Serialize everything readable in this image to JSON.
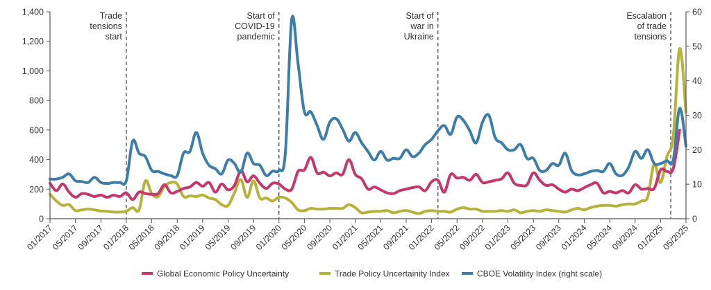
{
  "chart_data": {
    "type": "line",
    "title": "",
    "start_month": "01/2017",
    "months_count": 101,
    "x_tick_labels": [
      "01/2017",
      "05/2017",
      "09/2017",
      "01/2018",
      "05/2018",
      "09/2018",
      "01/2019",
      "05/2019",
      "09/2019",
      "01/2020",
      "05/2020",
      "09/2020",
      "01/2021",
      "05/2021",
      "09/2021",
      "01/2022",
      "05/2022",
      "09/2022",
      "01/2023",
      "05/2023",
      "09/2023",
      "01/2024",
      "05/2024",
      "09/2024",
      "01/2025",
      "05/2025"
    ],
    "y_left": {
      "range": [
        0,
        1400
      ],
      "ticks": [
        0,
        200,
        400,
        600,
        800,
        1000,
        1200,
        1400
      ],
      "tick_labels": [
        "0",
        "200",
        "400",
        "600",
        "800",
        "1,000",
        "1,200",
        "1,400"
      ]
    },
    "y_right": {
      "range": [
        0,
        60
      ],
      "ticks": [
        0,
        10,
        20,
        30,
        40,
        50,
        60
      ],
      "tick_labels": [
        "0",
        "10",
        "20",
        "30",
        "40",
        "50",
        "60"
      ]
    },
    "annotations": [
      {
        "month_index": 12,
        "lines": [
          "Trade",
          "tensions",
          "start"
        ]
      },
      {
        "month_index": 36,
        "lines": [
          "Start of",
          "COVID-19",
          "pandemic"
        ]
      },
      {
        "month_index": 61,
        "lines": [
          "Start of",
          "war in",
          "Ukraine"
        ]
      },
      {
        "month_index": 97.6,
        "lines": [
          "Escalation",
          "of trade",
          "tensions"
        ]
      }
    ],
    "legend_position": "bottom",
    "series": [
      {
        "name": "Global Economic Policy Uncertainty",
        "axis": "left",
        "color": "#c4386b",
        "values": [
          240,
          190,
          235,
          180,
          145,
          170,
          165,
          150,
          160,
          145,
          160,
          150,
          175,
          130,
          180,
          170,
          165,
          170,
          230,
          175,
          185,
          205,
          215,
          245,
          220,
          245,
          180,
          235,
          195,
          225,
          325,
          250,
          290,
          240,
          205,
          240,
          235,
          200,
          200,
          320,
          330,
          415,
          310,
          315,
          290,
          310,
          300,
          400,
          300,
          270,
          200,
          215,
          195,
          175,
          170,
          190,
          200,
          210,
          215,
          190,
          250,
          260,
          180,
          300,
          275,
          280,
          260,
          300,
          245,
          250,
          260,
          270,
          310,
          240,
          225,
          230,
          310,
          260,
          225,
          230,
          200,
          180,
          200,
          190,
          210,
          230,
          240,
          175,
          185,
          175,
          190,
          175,
          230,
          200,
          205,
          205,
          330,
          320,
          340,
          600,
          null
        ]
      },
      {
        "name": "Trade Policy Uncertainity Index",
        "axis": "left",
        "color": "#b7b23b",
        "values": [
          165,
          120,
          90,
          95,
          55,
          60,
          65,
          60,
          52,
          50,
          45,
          45,
          50,
          75,
          60,
          255,
          170,
          150,
          220,
          245,
          235,
          150,
          155,
          150,
          160,
          140,
          130,
          95,
          90,
          175,
          265,
          145,
          255,
          140,
          140,
          120,
          145,
          140,
          110,
          60,
          55,
          70,
          65,
          65,
          70,
          70,
          70,
          95,
          75,
          40,
          45,
          50,
          50,
          55,
          40,
          50,
          55,
          45,
          35,
          50,
          55,
          50,
          50,
          45,
          65,
          75,
          65,
          65,
          50,
          50,
          50,
          55,
          50,
          60,
          40,
          50,
          55,
          50,
          60,
          55,
          50,
          45,
          60,
          70,
          60,
          75,
          85,
          90,
          90,
          85,
          95,
          100,
          100,
          120,
          150,
          370,
          245,
          420,
          560,
          1150,
          720
        ]
      },
      {
        "name": "CBOE Volatility Index (right scale)",
        "axis": "right",
        "color": "#3d7ea9",
        "values": [
          11.5,
          11.5,
          12,
          13,
          11,
          10.8,
          10.5,
          12,
          10.5,
          10.2,
          10.5,
          10.5,
          11,
          22.5,
          19,
          18,
          14,
          13.7,
          13,
          12.5,
          12.5,
          19,
          19.5,
          25,
          19,
          15.5,
          14.5,
          13,
          17,
          16,
          13.5,
          19,
          16,
          15.5,
          12.5,
          13.8,
          14,
          19,
          57.7,
          45,
          31,
          31,
          27,
          23,
          28,
          29,
          26,
          22.5,
          25,
          22,
          19.5,
          17,
          19.5,
          17,
          17.5,
          17.5,
          20,
          18,
          19,
          21.5,
          23,
          25.5,
          27,
          24.5,
          29.5,
          28.5,
          25.5,
          22,
          28,
          30,
          23.5,
          22,
          20,
          20,
          21.5,
          17.5,
          17.5,
          14,
          14,
          16,
          15.5,
          19,
          14,
          12.7,
          13,
          13.7,
          14,
          13.7,
          16,
          13,
          12.6,
          15,
          19.5,
          17.5,
          20,
          16,
          16,
          16.8,
          17,
          32,
          21
        ]
      }
    ]
  }
}
